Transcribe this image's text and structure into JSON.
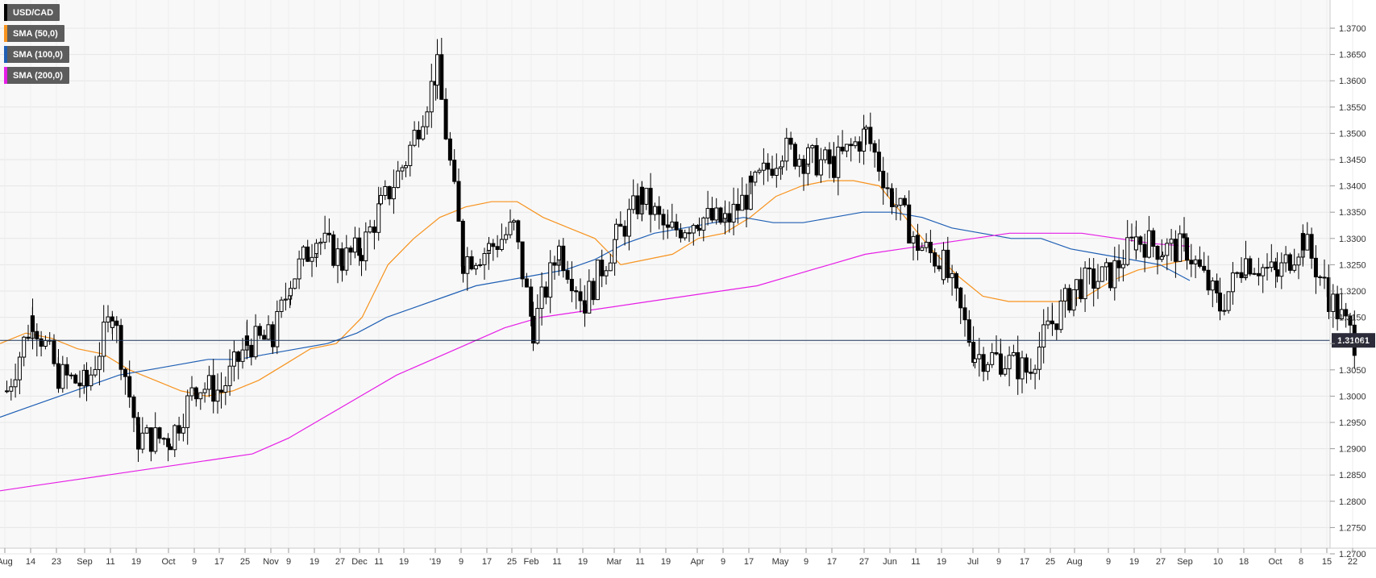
{
  "chart_data": {
    "type": "candlestick",
    "instrument": "USD/CAD",
    "ylim": [
      1.27,
      1.372
    ],
    "y_ticks": [
      "1.2700",
      "1.2750",
      "1.2800",
      "1.2850",
      "1.2900",
      "1.2950",
      "1.3000",
      "1.3050",
      "1.3100",
      "1.3150",
      "1.3200",
      "1.3250",
      "1.3300",
      "1.3350",
      "1.3400",
      "1.3450",
      "1.3500",
      "1.3550",
      "1.3600",
      "1.3650",
      "1.3700"
    ],
    "x_ticks": [
      "Aug",
      "14",
      "23",
      "Sep",
      "11",
      "19",
      "Oct",
      "9",
      "17",
      "25",
      "Nov",
      "9",
      "19",
      "27",
      "Dec",
      "11",
      "19",
      "'19",
      "9",
      "17",
      "25",
      "Feb",
      "11",
      "19",
      "Mar",
      "11",
      "19",
      "Apr",
      "9",
      "17",
      "May",
      "9",
      "17",
      "27",
      "Jun",
      "11",
      "19",
      "Jul",
      "9",
      "17",
      "25",
      "Aug",
      "9",
      "19",
      "27",
      "Sep",
      "10",
      "18",
      "Oct",
      "8",
      "15",
      "22"
    ],
    "last_price": 1.31061,
    "last_price_label": "1.31061",
    "legend": [
      {
        "label": "USD/CAD",
        "color": "#000000"
      },
      {
        "label": "SMA (50,0)",
        "color": "#f7931e"
      },
      {
        "label": "SMA (100,0)",
        "color": "#1f5fb4"
      },
      {
        "label": "SMA (200,0)",
        "color": "#e61ee6"
      }
    ],
    "grid": true,
    "legend_position": "top-left",
    "close_series": [
      {
        "x": "Aug",
        "y": 1.301
      },
      {
        "x": "14",
        "y": 1.315
      },
      {
        "x": "23",
        "y": 1.304
      },
      {
        "x": "Sep",
        "y": 1.302
      },
      {
        "x": "11",
        "y": 1.316
      },
      {
        "x": "19",
        "y": 1.292
      },
      {
        "x": "Oct",
        "y": 1.292
      },
      {
        "x": "9",
        "y": 1.302
      },
      {
        "x": "17",
        "y": 1.301
      },
      {
        "x": "25",
        "y": 1.31
      },
      {
        "x": "Nov",
        "y": 1.311
      },
      {
        "x": "9",
        "y": 1.322
      },
      {
        "x": "19",
        "y": 1.33
      },
      {
        "x": "27",
        "y": 1.326
      },
      {
        "x": "Dec",
        "y": 1.328
      },
      {
        "x": "11",
        "y": 1.336
      },
      {
        "x": "19",
        "y": 1.345
      },
      {
        "x": "'19",
        "y": 1.362
      },
      {
        "x": "9",
        "y": 1.326
      },
      {
        "x": "17",
        "y": 1.328
      },
      {
        "x": "25",
        "y": 1.332
      },
      {
        "x": "Feb",
        "y": 1.313
      },
      {
        "x": "11",
        "y": 1.328
      },
      {
        "x": "19",
        "y": 1.318
      },
      {
        "x": "Mar",
        "y": 1.33
      },
      {
        "x": "11",
        "y": 1.338
      },
      {
        "x": "19",
        "y": 1.331
      },
      {
        "x": "Apr",
        "y": 1.334
      },
      {
        "x": "9",
        "y": 1.333
      },
      {
        "x": "17",
        "y": 1.339
      },
      {
        "x": "May",
        "y": 1.347
      },
      {
        "x": "9",
        "y": 1.345
      },
      {
        "x": "17",
        "y": 1.344
      },
      {
        "x": "27",
        "y": 1.35
      },
      {
        "x": "Jun",
        "y": 1.338
      },
      {
        "x": "11",
        "y": 1.329
      },
      {
        "x": "19",
        "y": 1.325
      },
      {
        "x": "Jul",
        "y": 1.308
      },
      {
        "x": "9",
        "y": 1.307
      },
      {
        "x": "17",
        "y": 1.305
      },
      {
        "x": "25",
        "y": 1.314
      },
      {
        "x": "Aug",
        "y": 1.321
      },
      {
        "x": "9",
        "y": 1.323
      },
      {
        "x": "19",
        "y": 1.33
      },
      {
        "x": "27",
        "y": 1.328
      },
      {
        "x": "Sep",
        "y": 1.328
      },
      {
        "x": "10",
        "y": 1.317
      },
      {
        "x": "18",
        "y": 1.326
      },
      {
        "x": "Oct",
        "y": 1.323
      },
      {
        "x": "8",
        "y": 1.33
      },
      {
        "x": "15",
        "y": 1.319
      },
      {
        "x": "22",
        "y": 1.3106
      }
    ],
    "series": [
      {
        "name": "SMA (50,0)",
        "values": [
          1.31,
          1.312,
          1.311,
          1.309,
          1.308,
          1.305,
          1.303,
          1.301,
          1.3,
          1.301,
          1.303,
          1.306,
          1.309,
          1.31,
          1.315,
          1.325,
          1.33,
          1.334,
          1.336,
          1.337,
          1.337,
          1.334,
          1.332,
          1.33,
          1.325,
          1.326,
          1.327,
          1.33,
          1.331,
          1.334,
          1.338,
          1.34,
          1.341,
          1.341,
          1.34,
          1.334,
          1.328,
          1.323,
          1.319,
          1.318,
          1.318,
          1.318,
          1.319,
          1.322,
          1.324,
          1.325,
          1.326
        ]
      },
      {
        "name": "SMA (100,0)",
        "values": [
          1.296,
          1.298,
          1.3,
          1.302,
          1.304,
          1.305,
          1.306,
          1.307,
          1.307,
          1.308,
          1.309,
          1.31,
          1.312,
          1.315,
          1.317,
          1.319,
          1.321,
          1.322,
          1.323,
          1.324,
          1.326,
          1.329,
          1.331,
          1.332,
          1.333,
          1.334,
          1.333,
          1.333,
          1.334,
          1.335,
          1.335,
          1.334,
          1.332,
          1.331,
          1.33,
          1.33,
          1.328,
          1.327,
          1.326,
          1.325,
          1.322
        ]
      },
      {
        "name": "SMA (200,0)",
        "values": [
          1.282,
          1.283,
          1.284,
          1.285,
          1.286,
          1.287,
          1.288,
          1.289,
          1.292,
          1.296,
          1.3,
          1.304,
          1.307,
          1.31,
          1.313,
          1.315,
          1.316,
          1.317,
          1.318,
          1.319,
          1.32,
          1.321,
          1.323,
          1.325,
          1.327,
          1.328,
          1.329,
          1.33,
          1.331,
          1.331,
          1.331,
          1.33,
          1.329,
          1.3285
        ]
      }
    ]
  }
}
